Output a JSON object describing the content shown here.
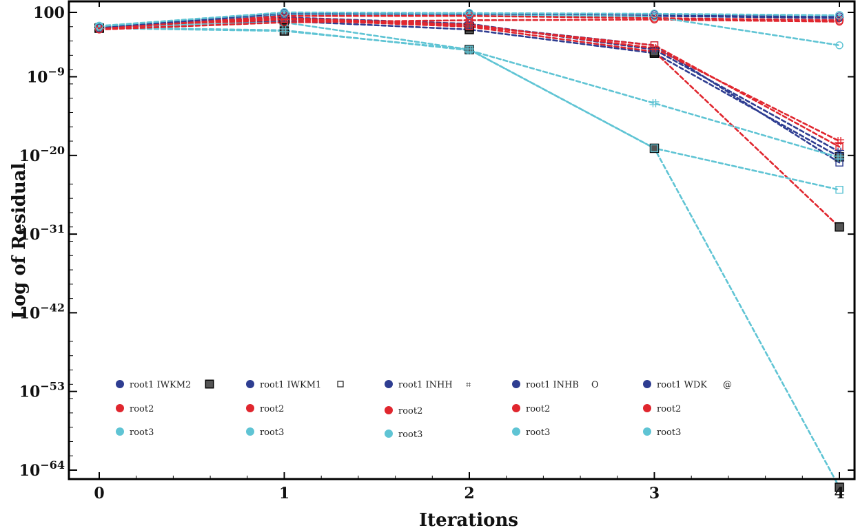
{
  "chart_data": {
    "type": "line",
    "title": "",
    "xlabel": "Iterations",
    "ylabel": "Log of Residual",
    "y_scale": "log",
    "x_ticks": [
      "0",
      "1",
      "2",
      "3",
      "4"
    ],
    "y_tick_exponents": [
      0,
      -9,
      -20,
      -31,
      -42,
      -53,
      -64
    ],
    "y_tick_labels": [
      {
        "base": "100",
        "exp": ""
      },
      {
        "base": "10",
        "exp": "−9"
      },
      {
        "base": "10",
        "exp": "−20"
      },
      {
        "base": "10",
        "exp": "−31"
      },
      {
        "base": "10",
        "exp": "−42"
      },
      {
        "base": "10",
        "exp": "−53"
      },
      {
        "base": "10",
        "exp": "−64"
      }
    ],
    "xlim": [
      0,
      4
    ],
    "ylim_log10": [
      -65,
      0.2
    ],
    "x": [
      0,
      1,
      2,
      3,
      4
    ],
    "colors": {
      "root1": "#2E3D91",
      "root2": "#E0262E",
      "root3": "#5FC4D4",
      "iwkm2_marker": "#555555"
    },
    "series": [
      {
        "name": "root1 IWKM2",
        "root": "root1",
        "marker": "filled-square",
        "log10_values": [
          -2.2,
          -1.2,
          -2.4,
          -5.7,
          -20.2
        ]
      },
      {
        "name": "root2 IWKM2",
        "root": "root2",
        "marker": "filled-square",
        "log10_values": [
          -2.2,
          -1.0,
          -2.0,
          -5.5,
          -30.0
        ]
      },
      {
        "name": "root3 IWKM2",
        "root": "root3",
        "marker": "filled-square",
        "log10_values": [
          -2.2,
          -2.6,
          -5.2,
          -19.0,
          -66.4
        ]
      },
      {
        "name": "root1 IWKM1",
        "root": "root1",
        "marker": "open-square",
        "log10_values": [
          -2.0,
          -0.8,
          -1.8,
          -4.6,
          -21.0
        ]
      },
      {
        "name": "root2 IWKM1",
        "root": "root2",
        "marker": "open-square",
        "log10_values": [
          -2.0,
          -0.9,
          -1.9,
          -4.6,
          -18.8
        ]
      },
      {
        "name": "root3 IWKM1",
        "root": "root3",
        "marker": "open-square",
        "log10_values": [
          -2.0,
          -1.4,
          -5.2,
          -19.0,
          -24.8
        ]
      },
      {
        "name": "root1 INHH",
        "root": "root1",
        "marker": "double-cross",
        "log10_values": [
          -2.1,
          -0.7,
          -1.6,
          -5.2,
          -19.5
        ]
      },
      {
        "name": "root2 INHH",
        "root": "root2",
        "marker": "double-cross",
        "log10_values": [
          -2.1,
          -0.8,
          -1.7,
          -5.0,
          -18.0
        ]
      },
      {
        "name": "root3 INHH",
        "root": "root3",
        "marker": "double-cross",
        "log10_values": [
          -2.1,
          -2.5,
          -5.3,
          -12.7,
          -20.3
        ]
      },
      {
        "name": "root1 INHB",
        "root": "root1",
        "marker": "open-circle",
        "log10_values": [
          -2.3,
          -0.3,
          -0.4,
          -0.5,
          -0.8
        ]
      },
      {
        "name": "root2 INHB",
        "root": "root2",
        "marker": "open-circle",
        "log10_values": [
          -2.4,
          -1.4,
          -1.1,
          -1.0,
          -1.3
        ]
      },
      {
        "name": "root3 INHB",
        "root": "root3",
        "marker": "open-circle",
        "log10_values": [
          -2.0,
          -0.2,
          -0.3,
          -0.6,
          -4.6
        ]
      },
      {
        "name": "root1 WDK",
        "root": "root1",
        "marker": "at-sign",
        "log10_values": [
          -2.2,
          -0.1,
          -0.2,
          -0.3,
          -0.6
        ]
      },
      {
        "name": "root2 WDK",
        "root": "root2",
        "marker": "at-sign",
        "log10_values": [
          -2.3,
          -0.5,
          -0.5,
          -0.8,
          -1.1
        ]
      },
      {
        "name": "root3 WDK",
        "root": "root3",
        "marker": "at-sign",
        "log10_values": [
          -1.9,
          0.0,
          -0.1,
          -0.2,
          -0.4
        ]
      }
    ],
    "legend": {
      "placement": "bottom-left, inside plot",
      "columns": [
        {
          "method_marker": "filled-square",
          "entries": [
            {
              "label": "root1 IWKM2",
              "root": "root1"
            },
            {
              "label": "root2",
              "root": "root2"
            },
            {
              "label": "root3",
              "root": "root3"
            }
          ]
        },
        {
          "method_marker": "open-square",
          "entries": [
            {
              "label": "root1 IWKM1",
              "root": "root1"
            },
            {
              "label": "root2",
              "root": "root2"
            },
            {
              "label": "root3",
              "root": "root3"
            }
          ]
        },
        {
          "method_marker": "double-cross",
          "entries": [
            {
              "label": "root1 INHH",
              "root": "root1"
            },
            {
              "label": "root2",
              "root": "root2"
            },
            {
              "label": "root3",
              "root": "root3"
            }
          ]
        },
        {
          "method_marker": "text-O",
          "entries": [
            {
              "label": "root1 INHB",
              "root": "root1"
            },
            {
              "label": "root2",
              "root": "root2"
            },
            {
              "label": "root3",
              "root": "root3"
            }
          ]
        },
        {
          "method_marker": "text-at",
          "entries": [
            {
              "label": "root1 WDK",
              "root": "root1"
            },
            {
              "label": "root2",
              "root": "root2"
            },
            {
              "label": "root3",
              "root": "root3"
            }
          ]
        }
      ],
      "marker_glyphs": {
        "double-cross": "⌗",
        "text-O": "O",
        "text-at": "@"
      }
    }
  }
}
